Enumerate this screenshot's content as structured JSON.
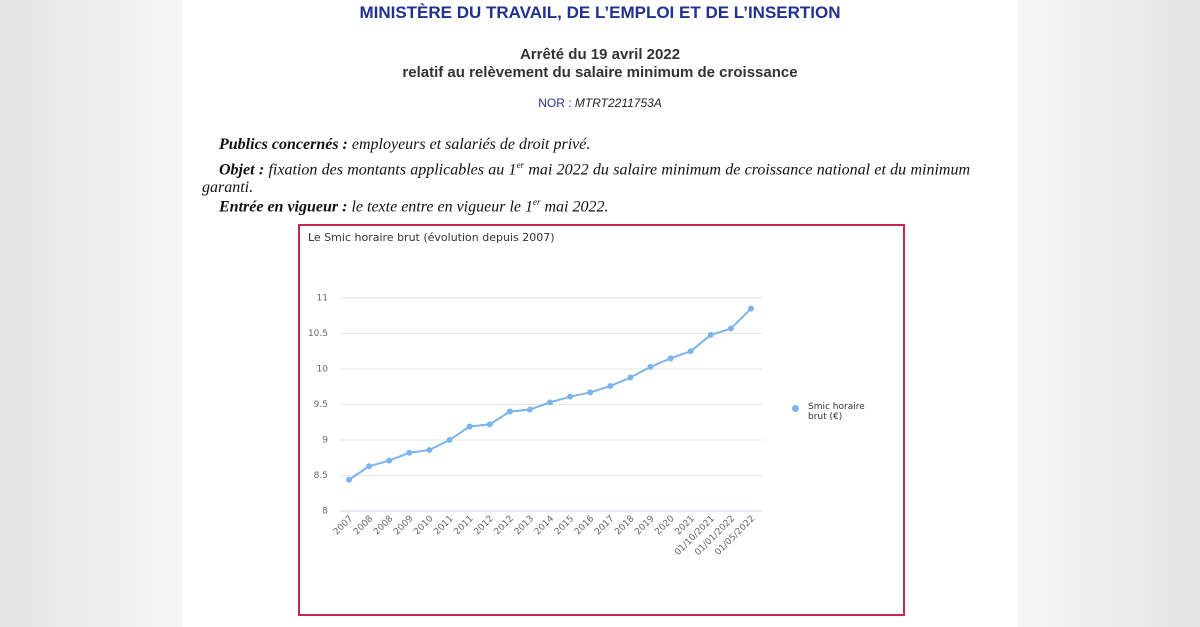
{
  "header": {
    "ministry": "MINISTÈRE DU TRAVAIL, DE L’EMPLOI ET DE L’INSERTION",
    "title": "Arrêté du 19 avril 2022",
    "subtitle": "relatif au relèvement du salaire minimum de croissance",
    "nor_label": "NOR :",
    "nor": "MTRT2211753A"
  },
  "summary": {
    "publics": {
      "label": "Publics concernés :",
      "text": "employeurs et salariés de droit privé."
    },
    "objet": {
      "label": "Objet :",
      "before": "fixation des montants applicables au 1",
      "sup": "er",
      "after": "mai 2022 du salaire minimum de croissance national et du minimum garanti."
    },
    "entree": {
      "label": "Entrée en vigueur :",
      "before": "le texte entre en vigueur le 1",
      "sup": "er",
      "after": "mai 2022."
    }
  },
  "chart_data": {
    "type": "line",
    "title": "Le Smic horaire brut (évolution depuis 2007)",
    "categories": [
      "2007",
      "2008",
      "2008",
      "2009",
      "2010",
      "2011",
      "2011",
      "2012",
      "2012",
      "2013",
      "2014",
      "2015",
      "2016",
      "2017",
      "2018",
      "2019",
      "2020",
      "2021",
      "01/10/2021",
      "01/01/2022",
      "01/05/2022"
    ],
    "series": [
      {
        "name": "Smic horaire brut (€)",
        "color": "#7cb5ec",
        "values": [
          8.44,
          8.63,
          8.71,
          8.82,
          8.86,
          9.0,
          9.19,
          9.22,
          9.4,
          9.43,
          9.53,
          9.61,
          9.67,
          9.76,
          9.88,
          10.03,
          10.15,
          10.25,
          10.48,
          10.57,
          10.85
        ]
      }
    ],
    "ylim": [
      8,
      11
    ],
    "yticks": [
      8,
      8.5,
      9,
      9.5,
      10,
      10.5,
      11
    ],
    "grid": true,
    "legend": "right"
  }
}
